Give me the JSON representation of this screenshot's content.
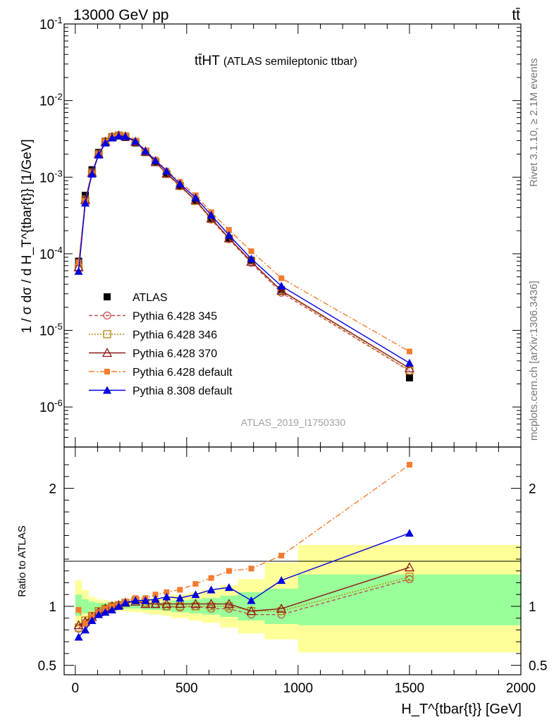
{
  "header": {
    "energy_label": "13000 GeV pp",
    "process_label": "tt̄"
  },
  "side_labels": {
    "rivet": "Rivet 3.1.10, ≥ 2.1M events",
    "mcplots": "mcplots.cern.ch [arXiv:1306.3436]"
  },
  "colors": {
    "ATLAS": "#000000",
    "p345": "#c0504d",
    "p346": "#b8860b",
    "p370": "#8b1a1a",
    "p6def": "#f47c2c",
    "p8def": "#0000e0",
    "band_yellow": "#ffff99",
    "band_green": "#99ff99"
  },
  "chart_data": [
    {
      "type": "line",
      "title": "tt̄HT (ATLAS semileptonic ttbar)",
      "title_main": "tt̄HT",
      "title_sub": "(ATLAS semileptonic ttbar)",
      "analysis_tag": "ATLAS_2019_I1750330",
      "ylabel": "1 / σ dσ / d H_T^{tbar{t}} [1/GeV]",
      "yscale": "log",
      "ylim": [
        3e-07,
        0.1
      ],
      "xlim": [
        -50,
        2000
      ],
      "y_tick_labels": [
        "10^-6",
        "10^-5",
        "10^-4",
        "10^-3",
        "10^-2",
        "10^-1"
      ],
      "legend_position": "bottom-left",
      "x": [
        15,
        45,
        75,
        105,
        135,
        165,
        195,
        225,
        270,
        315,
        360,
        410,
        470,
        540,
        610,
        690,
        790,
        925,
        1500
      ],
      "series": [
        {
          "name": "ATLAS",
          "key": "ATLAS",
          "marker": "square",
          "values": [
            8e-05,
            0.00058,
            0.00125,
            0.0021,
            0.00295,
            0.00335,
            0.00345,
            0.0033,
            0.0028,
            0.0021,
            0.00155,
            0.0011,
            0.00077,
            0.00049,
            0.000285,
            0.000158,
            8.2e-05,
            3.4e-05,
            2.4e-06
          ]
        },
        {
          "name": "Pythia 6.428 345",
          "key": "p345",
          "marker": "circle-open",
          "dash": "5,3",
          "values": [
            6.5e-05,
            0.0005,
            0.00115,
            0.002,
            0.0029,
            0.00335,
            0.0035,
            0.0034,
            0.0029,
            0.00215,
            0.00158,
            0.0011,
            0.00076,
            0.00049,
            0.00028,
            0.000155,
            7.6e-05,
            3.1e-05,
            2.95e-06
          ]
        },
        {
          "name": "Pythia 6.428 346",
          "key": "p346",
          "marker": "square-open",
          "dash": "2,2",
          "values": [
            6.6e-05,
            0.00051,
            0.00115,
            0.002,
            0.0029,
            0.00335,
            0.0035,
            0.0034,
            0.0029,
            0.00215,
            0.00158,
            0.0011,
            0.00077,
            0.00049,
            0.000285,
            0.000158,
            7.9e-05,
            3.25e-05,
            3e-06
          ]
        },
        {
          "name": "Pythia 6.428 370",
          "key": "p370",
          "marker": "triangle-open",
          "dash": "",
          "values": [
            6.7e-05,
            0.0005,
            0.00114,
            0.002,
            0.0029,
            0.00335,
            0.0035,
            0.0034,
            0.0029,
            0.00215,
            0.00158,
            0.00112,
            0.00078,
            0.0005,
            0.00029,
            0.00016,
            7.9e-05,
            3.3e-05,
            3.2e-06
          ]
        },
        {
          "name": "Pythia 6.428 default",
          "key": "p6def",
          "marker": "square-small",
          "dash": "8,3,2,3",
          "values": [
            7.8e-05,
            0.00049,
            0.00113,
            0.002,
            0.0029,
            0.00335,
            0.0035,
            0.00345,
            0.003,
            0.00225,
            0.0017,
            0.00122,
            0.00087,
            0.00058,
            0.00035,
            0.000205,
            0.000108,
            4.8e-05,
            5.3e-06
          ]
        },
        {
          "name": "Pythia 8.308 default",
          "key": "p8def",
          "marker": "triangle-filled",
          "dash": "",
          "values": [
            5.9e-05,
            0.00046,
            0.0011,
            0.00195,
            0.0028,
            0.00325,
            0.00345,
            0.0034,
            0.00295,
            0.0022,
            0.00165,
            0.0012,
            0.00082,
            0.00054,
            0.00032,
            0.000175,
            8.6e-05,
            3.8e-05,
            3.75e-06
          ]
        }
      ]
    },
    {
      "type": "line",
      "ylabel": "Ratio to ATLAS",
      "xlabel": "H_T^{tbar{t}} [GeV]",
      "xlim": [
        -50,
        2000
      ],
      "ylim": [
        0.42,
        2.35
      ],
      "x_ticks": [
        0,
        500,
        1000,
        1500,
        2000
      ],
      "y_ticks": [
        0.5,
        1,
        2
      ],
      "x": [
        15,
        45,
        75,
        105,
        135,
        165,
        195,
        225,
        270,
        315,
        360,
        410,
        470,
        540,
        610,
        690,
        790,
        925,
        1500
      ],
      "bands": {
        "edges": [
          0,
          30,
          60,
          90,
          120,
          150,
          180,
          210,
          240,
          300,
          330,
          390,
          430,
          510,
          570,
          650,
          730,
          850,
          1000,
          2000
        ],
        "green": [
          [
            0.92,
            1.1
          ],
          [
            0.94,
            1.06
          ],
          [
            0.96,
            1.04
          ],
          [
            0.97,
            1.03
          ],
          [
            0.97,
            1.03
          ],
          [
            0.98,
            1.02
          ],
          [
            0.98,
            1.02
          ],
          [
            0.98,
            1.02
          ],
          [
            0.98,
            1.02
          ],
          [
            0.97,
            1.03
          ],
          [
            0.97,
            1.03
          ],
          [
            0.96,
            1.04
          ],
          [
            0.95,
            1.05
          ],
          [
            0.94,
            1.06
          ],
          [
            0.93,
            1.07
          ],
          [
            0.91,
            1.09
          ],
          [
            0.88,
            1.12
          ],
          [
            0.85,
            1.15
          ],
          [
            0.84,
            1.27
          ]
        ],
        "yellow": [
          [
            0.82,
            1.22
          ],
          [
            0.88,
            1.14
          ],
          [
            0.92,
            1.08
          ],
          [
            0.94,
            1.06
          ],
          [
            0.95,
            1.05
          ],
          [
            0.96,
            1.04
          ],
          [
            0.96,
            1.04
          ],
          [
            0.96,
            1.04
          ],
          [
            0.95,
            1.05
          ],
          [
            0.94,
            1.06
          ],
          [
            0.93,
            1.07
          ],
          [
            0.92,
            1.08
          ],
          [
            0.9,
            1.1
          ],
          [
            0.88,
            1.12
          ],
          [
            0.86,
            1.14
          ],
          [
            0.82,
            1.18
          ],
          [
            0.77,
            1.23
          ],
          [
            0.72,
            1.37
          ],
          [
            0.61,
            1.52
          ]
        ]
      },
      "series": [
        {
          "name": "Pythia 6.428 345",
          "key": "p345",
          "values": [
            0.81,
            0.86,
            0.92,
            0.95,
            0.98,
            1.0,
            1.01,
            1.03,
            1.05,
            1.03,
            1.02,
            1.0,
            0.99,
            1.0,
            0.98,
            0.98,
            0.93,
            0.93,
            1.23
          ]
        },
        {
          "name": "Pythia 6.428 346",
          "key": "p346",
          "values": [
            0.82,
            0.88,
            0.92,
            0.96,
            0.98,
            1.0,
            1.01,
            1.03,
            1.05,
            1.03,
            1.02,
            1.0,
            1.0,
            1.0,
            1.0,
            1.0,
            0.96,
            0.96,
            1.25
          ]
        },
        {
          "name": "Pythia 6.428 370",
          "key": "p370",
          "values": [
            0.84,
            0.87,
            0.91,
            0.95,
            0.98,
            1.0,
            1.01,
            1.03,
            1.04,
            1.02,
            1.02,
            1.02,
            1.02,
            1.02,
            1.02,
            1.02,
            0.96,
            0.98,
            1.33
          ]
        },
        {
          "name": "Pythia 6.428 default",
          "key": "p6def",
          "values": [
            0.97,
            0.85,
            0.91,
            0.95,
            0.98,
            1.0,
            1.01,
            1.04,
            1.07,
            1.07,
            1.1,
            1.12,
            1.14,
            1.19,
            1.24,
            1.3,
            1.32,
            1.43,
            2.2
          ]
        },
        {
          "name": "Pythia 8.308 default",
          "key": "p8def",
          "values": [
            0.74,
            0.8,
            0.88,
            0.93,
            0.95,
            0.97,
            1.0,
            1.03,
            1.05,
            1.05,
            1.06,
            1.08,
            1.07,
            1.1,
            1.14,
            1.16,
            1.05,
            1.22,
            1.62
          ]
        }
      ]
    }
  ]
}
